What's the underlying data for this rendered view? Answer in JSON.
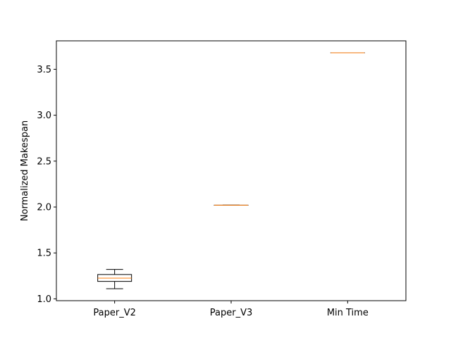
{
  "chart_data": {
    "type": "box",
    "title": "",
    "xlabel": "",
    "ylabel": "Normalized Makespan",
    "ylim": [
      0.98,
      3.81
    ],
    "yticks": [
      {
        "value": 1.0,
        "label": "1.0"
      },
      {
        "value": 1.5,
        "label": "1.5"
      },
      {
        "value": 2.0,
        "label": "2.0"
      },
      {
        "value": 2.5,
        "label": "2.5"
      },
      {
        "value": 3.0,
        "label": "3.0"
      },
      {
        "value": 3.5,
        "label": "3.5"
      }
    ],
    "categories": [
      "Paper_V2",
      "Paper_V3",
      "Min Time"
    ],
    "boxes": [
      {
        "name": "Paper_V2",
        "whisker_low": 1.11,
        "q1": 1.19,
        "median": 1.225,
        "q3": 1.265,
        "whisker_high": 1.32
      },
      {
        "name": "Paper_V3",
        "whisker_low": 2.02,
        "q1": 2.02,
        "median": 2.02,
        "q3": 2.02,
        "whisker_high": 2.02
      },
      {
        "name": "Min Time",
        "whisker_low": 3.68,
        "q1": 3.68,
        "median": 3.68,
        "q3": 3.68,
        "whisker_high": 3.68
      }
    ],
    "grid": false,
    "colors": {
      "box": "#000000",
      "median": "#ff7f0e"
    }
  }
}
